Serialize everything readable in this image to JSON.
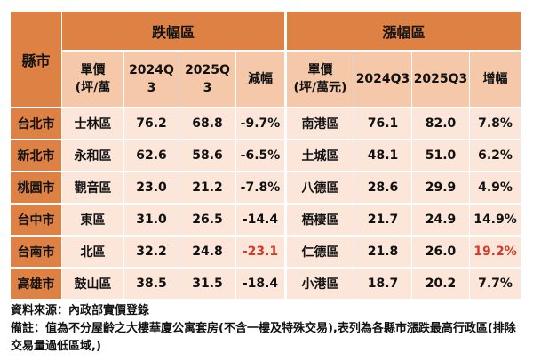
{
  "header": {
    "city": "縣市",
    "fall_group": "跌幅區",
    "rise_group": "漲幅區",
    "fall_cols": [
      "單價\n(坪/萬",
      "2024Q\n3",
      "2025Q\n3",
      "減幅"
    ],
    "rise_cols": [
      "單價\n(坪/萬元)",
      "2024Q3",
      "2025Q3",
      "增幅"
    ]
  },
  "rows": [
    {
      "city": "台北市",
      "fall_district": "士林區",
      "fall_2024": "76.2",
      "fall_2025": "68.8",
      "fall_change": "-9.7%",
      "rise_district": "南港區",
      "rise_2024": "76.1",
      "rise_2025": "82.0",
      "rise_change": "7.8%"
    },
    {
      "city": "新北市",
      "fall_district": "永和區",
      "fall_2024": "62.6",
      "fall_2025": "58.6",
      "fall_change": "-6.5%",
      "rise_district": "土城區",
      "rise_2024": "48.1",
      "rise_2025": "51.0",
      "rise_change": "6.2%"
    },
    {
      "city": "桃園市",
      "fall_district": "觀音區",
      "fall_2024": "23.0",
      "fall_2025": "21.2",
      "fall_change": "-7.8%",
      "rise_district": "八德區",
      "rise_2024": "28.6",
      "rise_2025": "29.9",
      "rise_change": "4.9%"
    },
    {
      "city": "台中市",
      "fall_district": "東區",
      "fall_2024": "31.0",
      "fall_2025": "26.5",
      "fall_change": "-14.4",
      "rise_district": "梧棲區",
      "rise_2024": "21.7",
      "rise_2025": "24.9",
      "rise_change": "14.9%"
    },
    {
      "city": "台南市",
      "fall_district": "北區",
      "fall_2024": "32.2",
      "fall_2025": "24.8",
      "fall_change": "-23.1",
      "rise_district": "仁德區",
      "rise_2024": "21.8",
      "rise_2025": "26.0",
      "rise_change": "19.2%"
    },
    {
      "city": "高雄市",
      "fall_district": "鼓山區",
      "fall_2024": "38.5",
      "fall_2025": "31.5",
      "fall_change": "-18.4",
      "rise_district": "小港區",
      "rise_2024": "18.7",
      "rise_2025": "20.2",
      "rise_change": "7.7%"
    }
  ],
  "highlight_color": "#d63a2a",
  "notes": {
    "source": "資料來源：內政部實價登錄",
    "remark": "備註：值為不分屋齡之大樓華廈公寓套房(不含一樓及特殊交易),表列為各縣市漲跌最高行政區(排除交易量過低區域,)"
  }
}
